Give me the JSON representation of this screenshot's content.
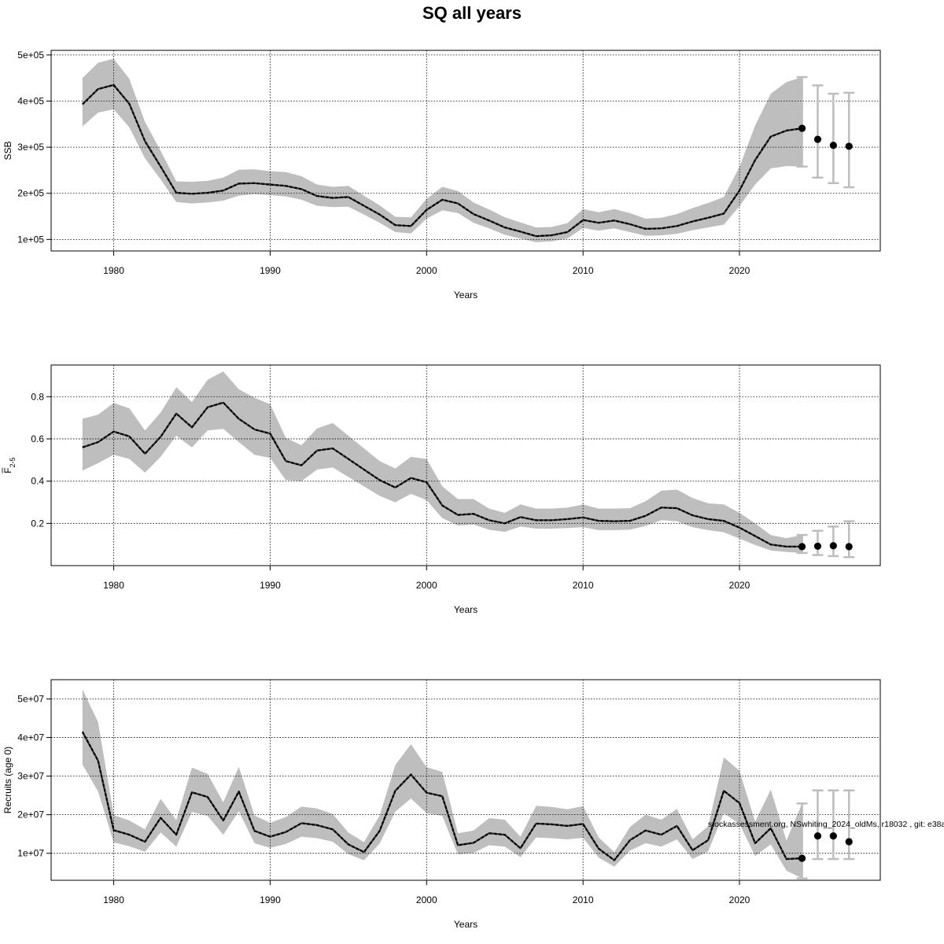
{
  "title": "SQ all years",
  "footnote": "stockassessment.org, NSwhiting_2024_oldMs, r18032 , git: e38a",
  "colors": {
    "band": "#bebebe",
    "line": "#000000",
    "errorbar": "#bdbdbd",
    "grid": "#000000"
  },
  "chart_data": [
    {
      "type": "line",
      "panel": "SSB",
      "xlabel": "Years",
      "ylabel": "SSB",
      "xlim": [
        1976,
        2029
      ],
      "ylim": [
        75000,
        510000
      ],
      "xticks": [
        1980,
        1990,
        2000,
        2010,
        2020
      ],
      "xtick_labels": [
        "1980",
        "1990",
        "2000",
        "2010",
        "2020"
      ],
      "yticks": [
        100000,
        200000,
        300000,
        400000,
        500000
      ],
      "ytick_labels": [
        "1e+05",
        "2e+05",
        "3e+05",
        "4e+05",
        "5e+05"
      ],
      "grid": true,
      "x": [
        1978,
        1979,
        1980,
        1981,
        1982,
        1983,
        1984,
        1985,
        1986,
        1987,
        1988,
        1989,
        1990,
        1991,
        1992,
        1993,
        1994,
        1995,
        1996,
        1997,
        1998,
        1999,
        2000,
        2001,
        2002,
        2003,
        2004,
        2005,
        2006,
        2007,
        2008,
        2009,
        2010,
        2011,
        2012,
        2013,
        2014,
        2015,
        2016,
        2017,
        2018,
        2019,
        2020,
        2021,
        2022,
        2023,
        2024
      ],
      "estimate": [
        393000,
        426000,
        435000,
        394000,
        313000,
        258000,
        201000,
        199000,
        201000,
        206000,
        221000,
        222000,
        219000,
        216000,
        209000,
        194000,
        190000,
        192000,
        173000,
        154000,
        131000,
        129000,
        164000,
        186000,
        178000,
        155000,
        141000,
        126000,
        117000,
        107000,
        109000,
        116000,
        142000,
        136000,
        141000,
        133000,
        123000,
        124000,
        129000,
        139000,
        147000,
        156000,
        206000,
        272000,
        323000,
        336000,
        341000
      ],
      "lower": [
        345000,
        375000,
        382000,
        343000,
        276000,
        230000,
        181000,
        178000,
        180000,
        184000,
        195000,
        198000,
        196000,
        193000,
        186000,
        173000,
        170000,
        171000,
        154000,
        136000,
        116000,
        113000,
        145000,
        163000,
        157000,
        136000,
        124000,
        110000,
        102000,
        94000,
        96000,
        102000,
        125000,
        119000,
        124000,
        116000,
        108000,
        109000,
        112000,
        120000,
        126000,
        132000,
        172000,
        219000,
        254000,
        259000,
        258000
      ],
      "upper": [
        450000,
        483000,
        492000,
        448000,
        355000,
        292000,
        226000,
        225000,
        227000,
        234000,
        251000,
        252000,
        248000,
        246000,
        237000,
        219000,
        214000,
        216000,
        195000,
        174000,
        149000,
        148000,
        188000,
        214000,
        205000,
        180000,
        165000,
        148000,
        137000,
        126000,
        127000,
        135000,
        166000,
        159000,
        166000,
        157000,
        145000,
        147000,
        155000,
        168000,
        179000,
        192000,
        257000,
        347000,
        416000,
        441000,
        452000
      ],
      "forecast": {
        "x": [
          2024,
          2025,
          2026,
          2027
        ],
        "median": [
          341000,
          317000,
          304000,
          302000
        ],
        "lower": [
          258000,
          234000,
          222000,
          213000
        ],
        "upper": [
          452000,
          434000,
          416000,
          418000
        ]
      }
    },
    {
      "type": "line",
      "panel": "F",
      "xlabel": "Years",
      "ylabel": "F",
      "ylabel_sub": "2-5",
      "xlim": [
        1976,
        2029
      ],
      "ylim": [
        0,
        0.95
      ],
      "xticks": [
        1980,
        1990,
        2000,
        2010,
        2020
      ],
      "xtick_labels": [
        "1980",
        "1990",
        "2000",
        "2010",
        "2020"
      ],
      "yticks": [
        0.2,
        0.4,
        0.6,
        0.8
      ],
      "ytick_labels": [
        "0.2",
        "0.4",
        "0.6",
        "0.8"
      ],
      "grid": true,
      "x": [
        1978,
        1979,
        1980,
        1981,
        1982,
        1983,
        1984,
        1985,
        1986,
        1987,
        1988,
        1989,
        1990,
        1991,
        1992,
        1993,
        1994,
        1995,
        1996,
        1997,
        1998,
        1999,
        2000,
        2001,
        2002,
        2003,
        2004,
        2005,
        2006,
        2007,
        2008,
        2009,
        2010,
        2011,
        2012,
        2013,
        2014,
        2015,
        2016,
        2017,
        2018,
        2019,
        2020,
        2021,
        2022,
        2023,
        2024
      ],
      "estimate": [
        0.56,
        0.585,
        0.635,
        0.612,
        0.53,
        0.61,
        0.72,
        0.655,
        0.75,
        0.772,
        0.695,
        0.645,
        0.625,
        0.495,
        0.475,
        0.545,
        0.555,
        0.505,
        0.455,
        0.405,
        0.37,
        0.415,
        0.395,
        0.285,
        0.24,
        0.245,
        0.215,
        0.2,
        0.23,
        0.215,
        0.215,
        0.22,
        0.228,
        0.212,
        0.21,
        0.212,
        0.236,
        0.275,
        0.272,
        0.238,
        0.22,
        0.212,
        0.18,
        0.14,
        0.1,
        0.09,
        0.09
      ],
      "lower": [
        0.45,
        0.485,
        0.525,
        0.505,
        0.44,
        0.515,
        0.615,
        0.56,
        0.64,
        0.648,
        0.585,
        0.525,
        0.51,
        0.405,
        0.4,
        0.455,
        0.465,
        0.42,
        0.375,
        0.33,
        0.3,
        0.34,
        0.31,
        0.225,
        0.19,
        0.195,
        0.17,
        0.16,
        0.185,
        0.175,
        0.175,
        0.178,
        0.182,
        0.168,
        0.168,
        0.17,
        0.188,
        0.215,
        0.21,
        0.182,
        0.168,
        0.158,
        0.128,
        0.098,
        0.072,
        0.065,
        0.06
      ],
      "upper": [
        0.695,
        0.715,
        0.77,
        0.745,
        0.64,
        0.725,
        0.845,
        0.775,
        0.88,
        0.92,
        0.835,
        0.795,
        0.765,
        0.605,
        0.57,
        0.65,
        0.675,
        0.615,
        0.555,
        0.495,
        0.46,
        0.515,
        0.505,
        0.375,
        0.315,
        0.315,
        0.27,
        0.25,
        0.29,
        0.27,
        0.27,
        0.275,
        0.29,
        0.27,
        0.27,
        0.272,
        0.305,
        0.355,
        0.36,
        0.32,
        0.295,
        0.29,
        0.25,
        0.2,
        0.145,
        0.13,
        0.145
      ],
      "forecast": {
        "x": [
          2024,
          2025,
          2026,
          2027
        ],
        "median": [
          0.09,
          0.092,
          0.094,
          0.09
        ],
        "lower": [
          0.06,
          0.05,
          0.045,
          0.04
        ],
        "upper": [
          0.145,
          0.165,
          0.185,
          0.21
        ]
      }
    },
    {
      "type": "line",
      "panel": "Recruits",
      "xlabel": "Years",
      "ylabel": "Recruits (age 0)",
      "xlim": [
        1976,
        2029
      ],
      "ylim": [
        3000000,
        55000000
      ],
      "xticks": [
        1980,
        1990,
        2000,
        2010,
        2020
      ],
      "xtick_labels": [
        "1980",
        "1990",
        "2000",
        "2010",
        "2020"
      ],
      "yticks": [
        10000000,
        20000000,
        30000000,
        40000000,
        50000000
      ],
      "ytick_labels": [
        "1e+07",
        "2e+07",
        "3e+07",
        "4e+07",
        "5e+07"
      ],
      "grid": true,
      "x": [
        1978,
        1979,
        1980,
        1981,
        1982,
        1983,
        1984,
        1985,
        1986,
        1987,
        1988,
        1989,
        1990,
        1991,
        1992,
        1993,
        1994,
        1995,
        1996,
        1997,
        1998,
        1999,
        2000,
        2001,
        2002,
        2003,
        2004,
        2005,
        2006,
        2007,
        2008,
        2009,
        2010,
        2011,
        2012,
        2013,
        2014,
        2015,
        2016,
        2017,
        2018,
        2019,
        2020,
        2021,
        2022,
        2023,
        2024
      ],
      "estimate": [
        41500000,
        34000000,
        16000000,
        14800000,
        13000000,
        19200000,
        14800000,
        25800000,
        24600000,
        18500000,
        26000000,
        15800000,
        14300000,
        15500000,
        17800000,
        17300000,
        16200000,
        12300000,
        10300000,
        15800000,
        26200000,
        30400000,
        25700000,
        24800000,
        12100000,
        12700000,
        15200000,
        14800000,
        11300000,
        17700000,
        17500000,
        17100000,
        17600000,
        11200000,
        8200000,
        13400000,
        15900000,
        14800000,
        17100000,
        10800000,
        13400000,
        26200000,
        23000000,
        12600000,
        16500000,
        8500000,
        8700000
      ],
      "lower": [
        33000000,
        26000000,
        12800000,
        11800000,
        10400000,
        15400000,
        11700000,
        20700000,
        19700000,
        14800000,
        20900000,
        12600000,
        11400000,
        12400000,
        14300000,
        13900000,
        13000000,
        9800000,
        8200000,
        12500000,
        20800000,
        24200000,
        20400000,
        19700000,
        9700000,
        10100000,
        12100000,
        11700000,
        9000000,
        14100000,
        13900000,
        13600000,
        14000000,
        8900000,
        6500000,
        10700000,
        12600000,
        11700000,
        13600000,
        8500000,
        10500000,
        20400000,
        17600000,
        9300000,
        12300000,
        5500000,
        3500000
      ],
      "upper": [
        52500000,
        44000000,
        19900000,
        18500000,
        16200000,
        24100000,
        18600000,
        32200000,
        30600000,
        23200000,
        32400000,
        19800000,
        17900000,
        19400000,
        22100000,
        21600000,
        20200000,
        15400000,
        12900000,
        19800000,
        32900000,
        38300000,
        32300000,
        31100000,
        15200000,
        15900000,
        19100000,
        18700000,
        14300000,
        22300000,
        22000000,
        21400000,
        22200000,
        14100000,
        10300000,
        16800000,
        20000000,
        18700000,
        21500000,
        13600000,
        17000000,
        34900000,
        31400000,
        18200000,
        26500000,
        13300000,
        22900000
      ],
      "forecast": {
        "x": [
          2024,
          2025,
          2026,
          2027
        ],
        "median": [
          8700000,
          14500000,
          14500000,
          13000000
        ],
        "lower": [
          3500000,
          8500000,
          8500000,
          8500000
        ],
        "upper": [
          22900000,
          26300000,
          26300000,
          26300000
        ]
      }
    }
  ]
}
